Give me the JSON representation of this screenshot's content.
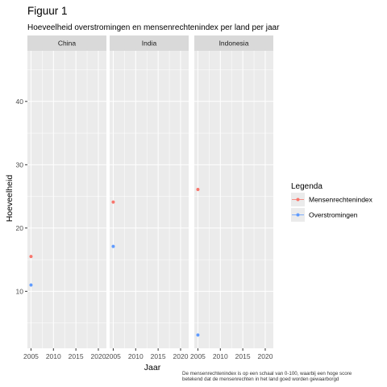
{
  "chart_data": {
    "type": "scatter",
    "title": "Figuur 1",
    "subtitle": "Hoeveelheid overstromingen en mensenrechtenindex per land per jaar",
    "xlabel": "Jaar",
    "ylabel": "Hoeveelheid",
    "xlim": [
      2004.2,
      2021.8
    ],
    "ylim": [
      1,
      48
    ],
    "x_ticks": [
      2005,
      2010,
      2015,
      2020
    ],
    "y_ticks": [
      10,
      20,
      30,
      40
    ],
    "grid": true,
    "facets": [
      "China",
      "India",
      "Indonesia"
    ],
    "legend": {
      "title": "Legenda",
      "position": "right",
      "entries": [
        {
          "label": "Mensenrechtenindex",
          "color": "#F8766D"
        },
        {
          "label": "Overstromingen",
          "color": "#619CFF"
        }
      ]
    },
    "series": [
      {
        "name": "Mensenrechtenindex",
        "color": "#F8766D",
        "points": [
          {
            "facet": "China",
            "x": 2005,
            "y": 15.5
          },
          {
            "facet": "India",
            "x": 2005,
            "y": 24.1
          },
          {
            "facet": "Indonesia",
            "x": 2005,
            "y": 26.1
          }
        ]
      },
      {
        "name": "Overstromingen",
        "color": "#619CFF",
        "points": [
          {
            "facet": "China",
            "x": 2005,
            "y": 11
          },
          {
            "facet": "India",
            "x": 2005,
            "y": 17.1
          },
          {
            "facet": "Indonesia",
            "x": 2005,
            "y": 3.1
          }
        ]
      }
    ],
    "caption": [
      "De mensenrechtenindex is op een schaal van 0-100, waarbij een hoge score",
      "betekend dat de mensenrechten in het land goed worden gewaarborgd"
    ]
  }
}
